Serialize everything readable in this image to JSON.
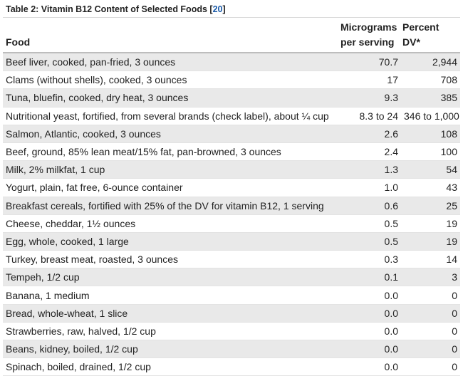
{
  "caption": {
    "prefix": "Table 2: Vitamin B12 Content of Selected Foods [",
    "ref": "20",
    "suffix": "]"
  },
  "columns": {
    "food": "Food",
    "mcg": [
      "Micrograms",
      "per serving"
    ],
    "dv": [
      "Percent",
      "DV*"
    ]
  },
  "rows": [
    {
      "food": "Beef liver, cooked, pan-fried, 3 ounces",
      "mcg": "70.7",
      "dv": "2,944"
    },
    {
      "food": "Clams (without shells), cooked, 3 ounces",
      "mcg": "17",
      "dv": "708"
    },
    {
      "food": "Tuna, bluefin, cooked, dry heat, 3 ounces",
      "mcg": "9.3",
      "dv": "385"
    },
    {
      "food": "Nutritional yeast, fortified, from several brands (check label), about ¼ cup",
      "mcg": "8.3 to 24",
      "dv": "346 to 1,000"
    },
    {
      "food": "Salmon, Atlantic, cooked, 3 ounces",
      "mcg": "2.6",
      "dv": "108"
    },
    {
      "food": "Beef, ground, 85% lean meat/15% fat, pan-browned, 3 ounces",
      "mcg": "2.4",
      "dv": "100"
    },
    {
      "food": "Milk, 2% milkfat, 1 cup",
      "mcg": "1.3",
      "dv": "54"
    },
    {
      "food": "Yogurt, plain, fat free, 6-ounce container",
      "mcg": "1.0",
      "dv": "43"
    },
    {
      "food": "Breakfast cereals, fortified with 25% of the DV for vitamin B12, 1 serving",
      "mcg": "0.6",
      "dv": "25"
    },
    {
      "food": "Cheese, cheddar, 1½ ounces",
      "mcg": "0.5",
      "dv": "19"
    },
    {
      "food": "Egg, whole, cooked, 1 large",
      "mcg": "0.5",
      "dv": "19"
    },
    {
      "food": "Turkey, breast meat, roasted, 3 ounces",
      "mcg": "0.3",
      "dv": "14"
    },
    {
      "food": "Tempeh, 1/2 cup",
      "mcg": "0.1",
      "dv": "3"
    },
    {
      "food": "Banana, 1 medium",
      "mcg": "0.0",
      "dv": "0"
    },
    {
      "food": "Bread, whole-wheat, 1 slice",
      "mcg": "0.0",
      "dv": "0"
    },
    {
      "food": "Strawberries, raw, halved, 1/2 cup",
      "mcg": "0.0",
      "dv": "0"
    },
    {
      "food": "Beans, kidney, boiled, 1/2 cup",
      "mcg": "0.0",
      "dv": "0"
    },
    {
      "food": "Spinach, boiled, drained, 1/2 cup",
      "mcg": "0.0",
      "dv": "0"
    }
  ]
}
